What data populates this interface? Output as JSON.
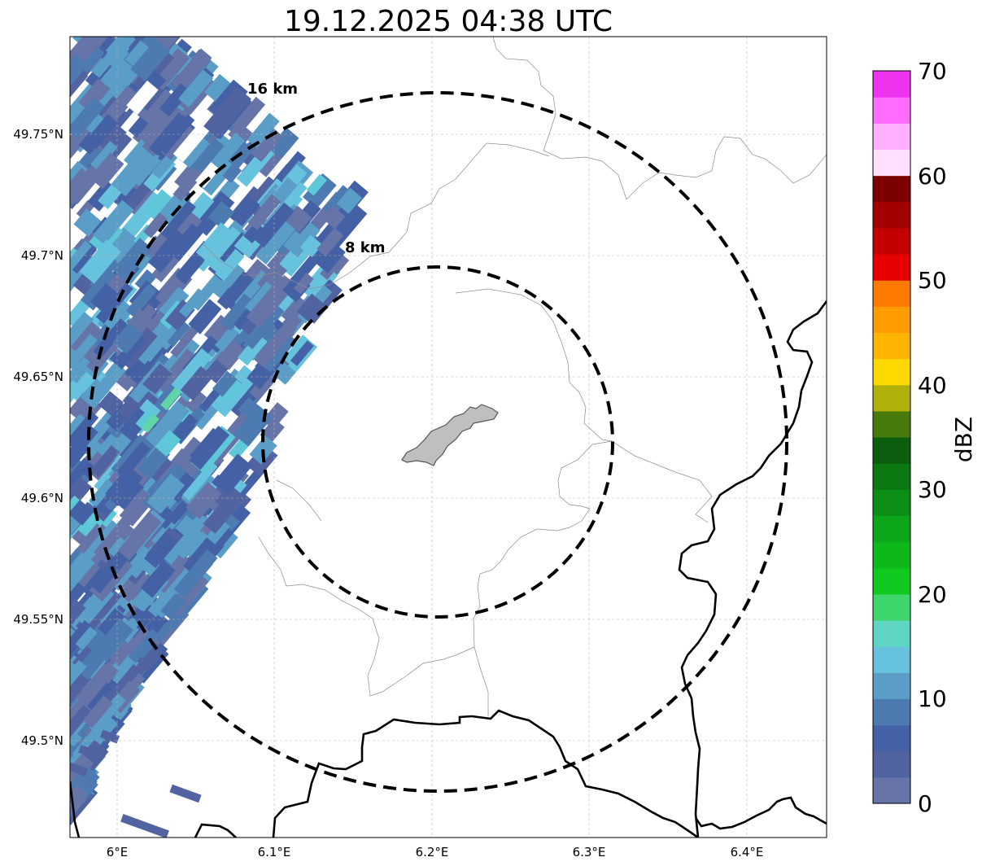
{
  "map": {
    "title": "19.12.2025 04:38 UTC",
    "lon_ticks": [
      "6°E",
      "6.1°E",
      "6.2°E",
      "6.3°E",
      "6.4°E"
    ],
    "lat_ticks": [
      "49.75°N",
      "49.7°N",
      "49.65°N",
      "49.6°N",
      "49.55°N",
      "49.5°N"
    ],
    "range_rings": [
      {
        "label": "16 km",
        "radius_km": 16
      },
      {
        "label": "8 km",
        "radius_km": 8
      }
    ],
    "radar_center": {
      "lon": 6.2,
      "lat": 49.615
    },
    "extent": {
      "lon_min": 5.97,
      "lon_max": 6.45,
      "lat_min": 49.46,
      "lat_max": 49.79
    },
    "gridlines": true,
    "echo_region": "western edge, light precipitation 0-20 dBZ"
  },
  "colorbar": {
    "unit": "dBZ",
    "tick_labels": [
      "0",
      "10",
      "20",
      "30",
      "40",
      "50",
      "60",
      "70"
    ],
    "range": [
      0,
      70
    ],
    "step": 2.5,
    "colors": [
      "#6674a8",
      "#5163a0",
      "#4461a6",
      "#4d7bb1",
      "#5a9ec8",
      "#67c2de",
      "#5fd5c4",
      "#3ed66c",
      "#10ca20",
      "#0db81a",
      "#0ca61b",
      "#0c8f16",
      "#0b7812",
      "#0a5e0e",
      "#467b0c",
      "#b0b10b",
      "#ffd800",
      "#ffb400",
      "#ff9c00",
      "#ff7a00",
      "#e60000",
      "#c40000",
      "#a30000",
      "#7d0000",
      "#ffe0ff",
      "#ffb0ff",
      "#ff6cff",
      "#ee33ee"
    ]
  }
}
